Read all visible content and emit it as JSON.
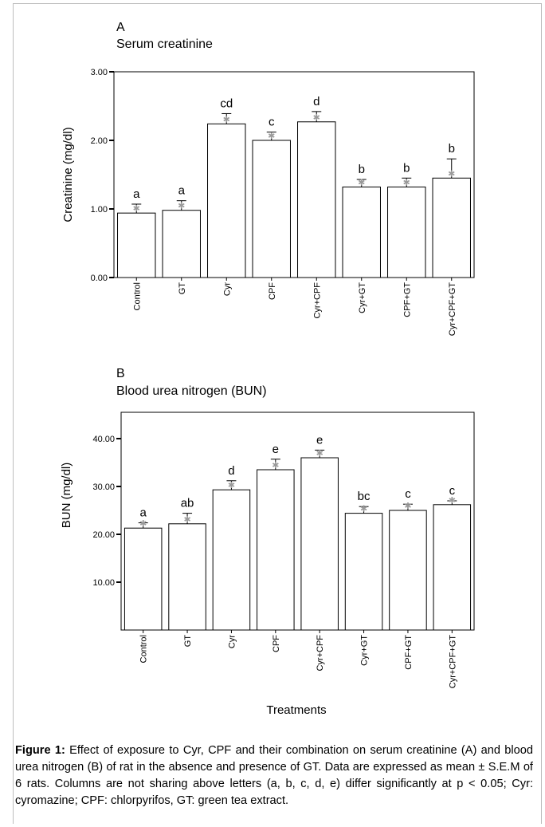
{
  "chart_data": [
    {
      "type": "bar",
      "panel_label": "A",
      "title": "Serum creatinine",
      "ylabel": "Creatinine (mg/dl)",
      "xlabel": "",
      "ylim": [
        0,
        3
      ],
      "yticks": [
        "0.00",
        "1.00",
        "2.00",
        "3.00"
      ],
      "ytick_values": [
        0,
        1,
        2,
        3
      ],
      "categories": [
        "Control",
        "GT",
        "Cyr",
        "CPF",
        "Cyr+CPF",
        "Cyr+GT",
        "CPF+GT",
        "Cyr+CPF+GT"
      ],
      "values": [
        0.94,
        0.98,
        2.24,
        2.0,
        2.27,
        1.32,
        1.32,
        1.45
      ],
      "errors": [
        0.13,
        0.14,
        0.15,
        0.12,
        0.15,
        0.11,
        0.13,
        0.28
      ],
      "significance_letters": [
        "a",
        "a",
        "cd",
        "c",
        "d",
        "b",
        "b",
        "b"
      ],
      "grid": false
    },
    {
      "type": "bar",
      "panel_label": "B",
      "title": "Blood urea nitrogen (BUN)",
      "ylabel": "BUN (mg/dl)",
      "xlabel": "Treatments",
      "ylim": [
        0,
        45.5
      ],
      "yticks": [
        "10.00",
        "20.00",
        "30.00",
        "40.00"
      ],
      "ytick_values": [
        10,
        20,
        30,
        40
      ],
      "categories": [
        "Control",
        "GT",
        "Cyr",
        "CPF",
        "Cyr+CPF",
        "Cyr+GT",
        "CPF+GT",
        "Cyr+CPF+GT"
      ],
      "values": [
        21.3,
        22.2,
        29.3,
        33.5,
        36.0,
        24.4,
        25.0,
        26.2
      ],
      "errors": [
        1.1,
        2.2,
        1.9,
        2.2,
        1.6,
        1.4,
        1.3,
        0.8
      ],
      "significance_letters": [
        "a",
        "ab",
        "d",
        "e",
        "e",
        "bc",
        "c",
        "c"
      ],
      "grid": false
    }
  ],
  "caption": {
    "label": "Figure 1:",
    "text": " Effect of exposure to Cyr, CPF and their combination on serum creatinine (A) and blood urea nitrogen (B) of rat in the absence and presence of GT. Data are expressed as mean ± S.E.M of 6 rats. Columns are not sharing above letters (a, b, c, d, e) differ significantly at p < 0.05; Cyr: cyromazine; CPF: chlorpyrifos, GT: green tea extract."
  }
}
